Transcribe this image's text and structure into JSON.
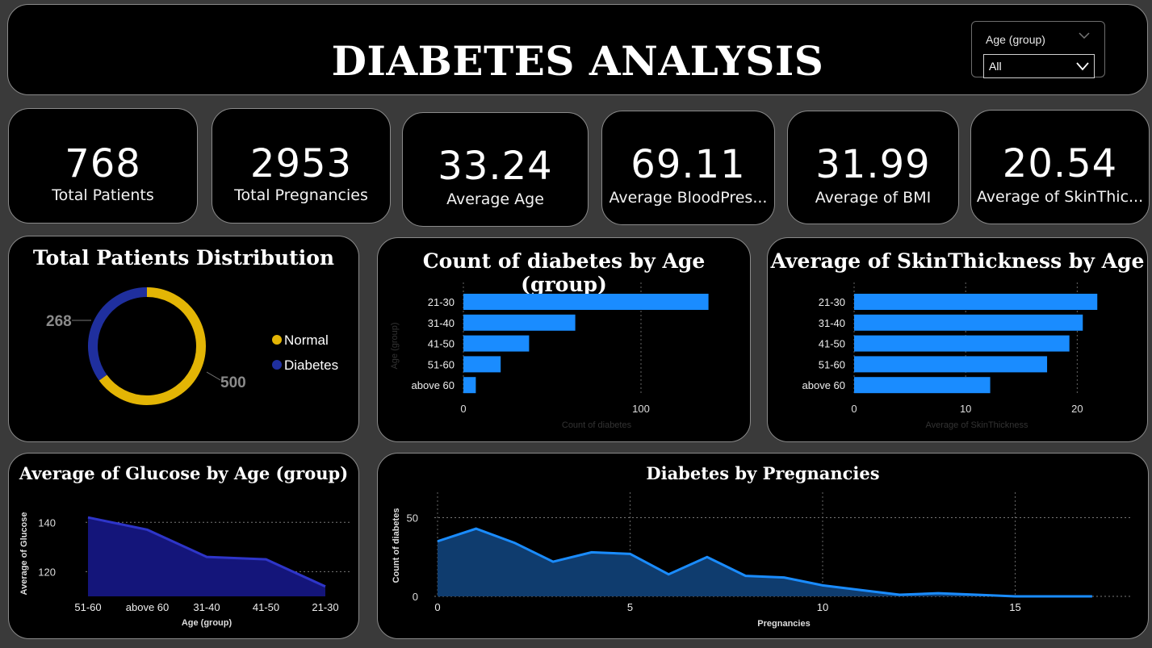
{
  "header": {
    "title": "DIABETES ANALYSIS"
  },
  "slicer": {
    "label": "Age (group)",
    "value": "All"
  },
  "kpis": [
    {
      "value": "768",
      "label": "Total Patients"
    },
    {
      "value": "2953",
      "label": "Total Pregnancies"
    },
    {
      "value": "33.24",
      "label": "Average Age"
    },
    {
      "value": "69.11",
      "label": "Average BloodPres..."
    },
    {
      "value": "31.99",
      "label": "Average of BMI"
    },
    {
      "value": "20.54",
      "label": "Average of SkinThic..."
    }
  ],
  "colors": {
    "normal": "#e3b505",
    "diabetes": "#1f2f9e",
    "bar": "#1a8cff",
    "area_glucose": "#14157a",
    "line_glucose": "#2e35c9",
    "area_preg": "#0f3c6e",
    "line_preg": "#1a8cff"
  },
  "chart_data": [
    {
      "type": "pie",
      "title": "Total Patients Distribution",
      "categories": [
        "Normal",
        "Diabetes"
      ],
      "values": [
        500,
        268
      ],
      "data_labels": [
        "500",
        "268"
      ],
      "legend": "right",
      "donut": true
    },
    {
      "type": "bar",
      "orientation": "horizontal",
      "title": "Count of diabetes by Age (group)",
      "categories": [
        "21-30",
        "31-40",
        "41-50",
        "51-60",
        "above 60"
      ],
      "values": [
        138,
        63,
        37,
        21,
        7
      ],
      "xlabel": "Count of diabetes",
      "ylabel": "Age (group)",
      "xlim": [
        0,
        150
      ],
      "xticks": [
        "0",
        "100"
      ],
      "grid": "vertical dotted"
    },
    {
      "type": "bar",
      "orientation": "horizontal",
      "title": "Average of SkinThickness by Age",
      "categories": [
        "21-30",
        "31-40",
        "41-50",
        "51-60",
        "above 60"
      ],
      "values": [
        21.8,
        20.5,
        19.3,
        17.3,
        12.2
      ],
      "xlabel": "Average of SkinThickness",
      "xlim": [
        0,
        22
      ],
      "xticks": [
        "0",
        "10",
        "20"
      ],
      "grid": "vertical dotted"
    },
    {
      "type": "area",
      "title": "Average of Glucose by Age (group)",
      "categories": [
        "51-60",
        "above 60",
        "31-40",
        "41-50",
        "21-30"
      ],
      "values": [
        142,
        137,
        126,
        125,
        114
      ],
      "xlabel": "Age (group)",
      "ylabel": "Average of Glucose",
      "ylim": [
        110,
        145
      ],
      "yticks": [
        "120",
        "140"
      ],
      "grid": "horizontal dotted"
    },
    {
      "type": "area",
      "title": "Diabetes by Pregnancies",
      "x": [
        0,
        1,
        2,
        3,
        4,
        5,
        6,
        7,
        8,
        9,
        10,
        11,
        12,
        13,
        14,
        15,
        17
      ],
      "values": [
        35,
        43,
        34,
        22,
        28,
        27,
        14,
        25,
        13,
        12,
        7,
        4,
        1,
        2,
        1,
        0,
        0
      ],
      "xlabel": "Pregnancies",
      "ylabel": "Count of diabetes",
      "xlim": [
        0,
        17
      ],
      "ylim": [
        0,
        60
      ],
      "xticks": [
        "0",
        "5",
        "10",
        "15"
      ],
      "yticks": [
        "0",
        "50"
      ],
      "grid": "both dotted"
    }
  ]
}
